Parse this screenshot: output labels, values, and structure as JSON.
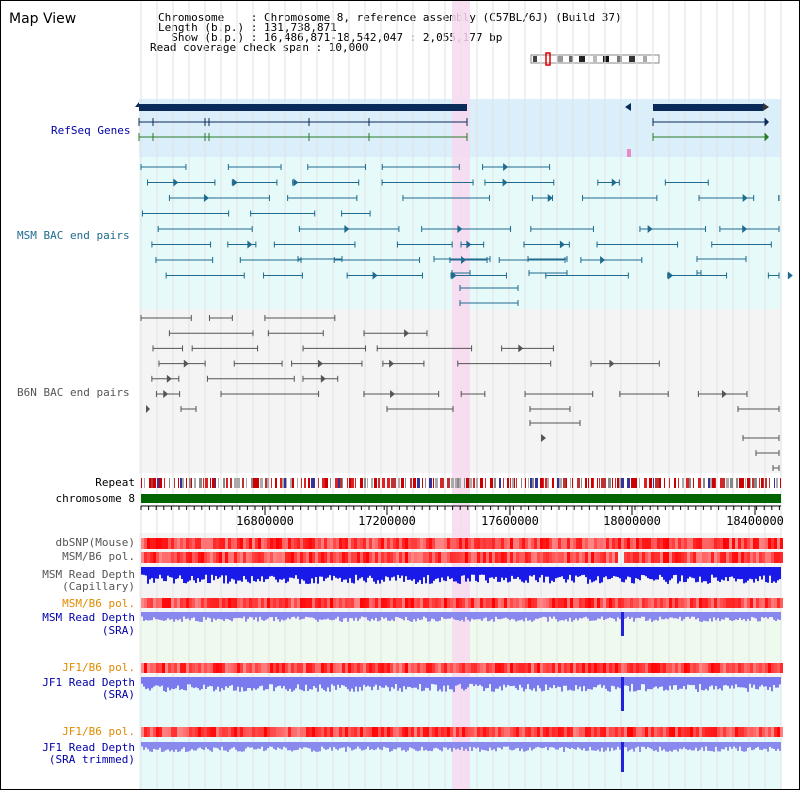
{
  "header": {
    "title": "Map View",
    "chromosome_line": "Chromosome    : Chromosome 8, reference assembly (C57BL/6J) (Build 37)",
    "length_line": "Length (b.p.) : 131,738,871",
    "show_line": "  Show (b.p.) : 16,486,871-18,542,047 : 2,055,177 bp",
    "coverage_line": "Read coverage check span : 10,000"
  },
  "tracks": {
    "refseq": "RefSeq Genes",
    "msm_bac": "MSM BAC end pairs",
    "b6n_bac": "B6N BAC end pairs",
    "repeat": "Repeat",
    "chromosome": "chromosome 8",
    "dbsnp": "dbSNP(Mouse)",
    "msm_b6_pol_1": "MSM/B6 pol.",
    "msm_depth_cap_1": "MSM Read Depth",
    "msm_depth_cap_2": "(Capillary)",
    "msm_b6_pol_2": "MSM/B6 pol.",
    "msm_depth_sra_1": "MSM Read Depth",
    "msm_depth_sra_2": "(SRA)",
    "jf1_b6_pol_1": "JF1/B6 pol.",
    "jf1_depth_sra_1": "JF1 Read Depth",
    "jf1_depth_sra_2": "(SRA)",
    "jf1_b6_pol_2": "JF1/B6 pol.",
    "jf1_depth_trim_1": "JF1 Read Depth",
    "jf1_depth_trim_2": "(SRA trimmed)"
  },
  "axis": {
    "ticks": [
      "16800000",
      "17200000",
      "17600000",
      "18000000",
      "18400000"
    ]
  },
  "colors": {
    "refseq_bg": "#dbeffa",
    "light_cyan": "#e6fafa",
    "teal": "#1e6b8f",
    "highlight": "#f7d8ee",
    "navy": "#0a2a5a",
    "chromosome": "#006400",
    "depth_blue": "#2222ee",
    "depth_light": "#7777ee"
  }
}
